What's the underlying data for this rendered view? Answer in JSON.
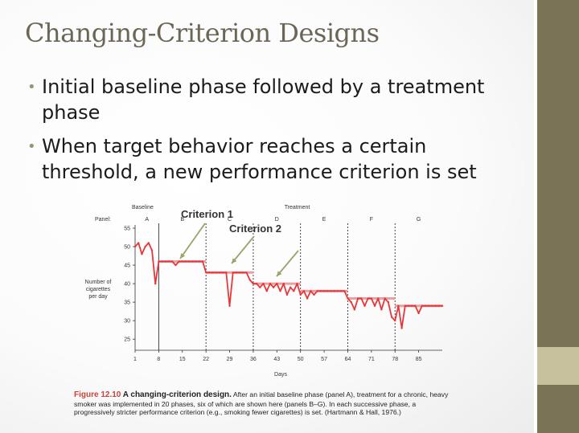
{
  "slide": {
    "title": "Changing-Criterion Designs",
    "bullets": [
      "Initial baseline phase followed by a treatment phase",
      "When target behavior reaches a certain threshold, a new performance criterion is set"
    ],
    "bullet_color": "#9a9470",
    "title_color": "#6b6656"
  },
  "figure": {
    "annotations": [
      "Criterion 1",
      "Criterion 2"
    ],
    "caption": {
      "label": "Figure 12.10",
      "title": "A changing-criterion design.",
      "text": "After an initial baseline phase (panel A), treatment for a chronic, heavy smoker was implemented in 20 phases, six of which are shown here (panels B–G). In each successive phase, a progressively stricter performance criterion (e.g., smoking fewer cigarettes) is set. (Hartmann & Hall, 1976.)"
    }
  },
  "chart_data": {
    "type": "line",
    "phase_labels": {
      "baseline": "Baseline",
      "treatment": "Treatment"
    },
    "panel_prefix": "Panel:",
    "panels": [
      "A",
      "B",
      "C",
      "D",
      "E",
      "F",
      "G"
    ],
    "xlabel": "Days",
    "ylabel": "Number of cigarettes per day",
    "x_ticks": [
      1,
      8,
      15,
      22,
      29,
      36,
      43,
      50,
      57,
      64,
      71,
      78,
      85
    ],
    "y_ticks": [
      25,
      30,
      35,
      40,
      45,
      50,
      55
    ],
    "xlim": [
      1,
      92
    ],
    "ylim": [
      22,
      55
    ],
    "phase_boundaries": [
      8,
      22,
      36,
      50,
      64,
      78
    ],
    "criteria": [
      {
        "from": 8,
        "to": 22,
        "value": 46
      },
      {
        "from": 22,
        "to": 36,
        "value": 43
      },
      {
        "from": 36,
        "to": 50,
        "value": 40
      },
      {
        "from": 50,
        "to": 64,
        "value": 38
      },
      {
        "from": 64,
        "to": 78,
        "value": 36
      },
      {
        "from": 78,
        "to": 92,
        "value": 34
      }
    ],
    "series": [
      {
        "x": [
          1,
          2,
          3,
          4,
          5,
          6,
          7,
          8,
          9,
          10,
          11,
          12,
          13,
          14,
          15,
          16,
          17,
          18,
          19,
          20,
          21,
          22,
          23,
          24,
          25,
          26,
          27,
          28,
          29,
          30,
          31,
          32,
          33,
          34,
          35,
          36,
          37,
          38,
          39,
          40,
          41,
          42,
          43,
          44,
          45,
          46,
          47,
          48,
          49,
          50,
          51,
          52,
          53,
          54,
          55,
          56,
          57,
          58,
          59,
          60,
          61,
          62,
          63,
          64,
          65,
          66,
          67,
          68,
          69,
          70,
          71,
          72,
          73,
          74,
          75,
          76,
          77,
          78,
          79,
          80,
          81,
          82,
          83,
          84,
          85,
          86,
          87,
          88,
          89,
          90,
          91,
          92
        ],
        "y": [
          50,
          51,
          48,
          50,
          51,
          49,
          40,
          46,
          46,
          46,
          46,
          46,
          45,
          46,
          46,
          46,
          46,
          46,
          46,
          46,
          46,
          43,
          43,
          43,
          43,
          43,
          43,
          43,
          34,
          43,
          43,
          43,
          43,
          43,
          41,
          40,
          40,
          39,
          40,
          38,
          40,
          39,
          40,
          38,
          40,
          37,
          39,
          38,
          40,
          37,
          38,
          36,
          38,
          37,
          38,
          38,
          38,
          38,
          38,
          38,
          38,
          38,
          38,
          36,
          35,
          33,
          36,
          36,
          34,
          36,
          36,
          34,
          36,
          33,
          36,
          35,
          31,
          30,
          34,
          28,
          34,
          34,
          34,
          34,
          32,
          34,
          34,
          34,
          34,
          34,
          34,
          34
        ]
      }
    ],
    "line_color": "#e8373a",
    "grid": false
  }
}
